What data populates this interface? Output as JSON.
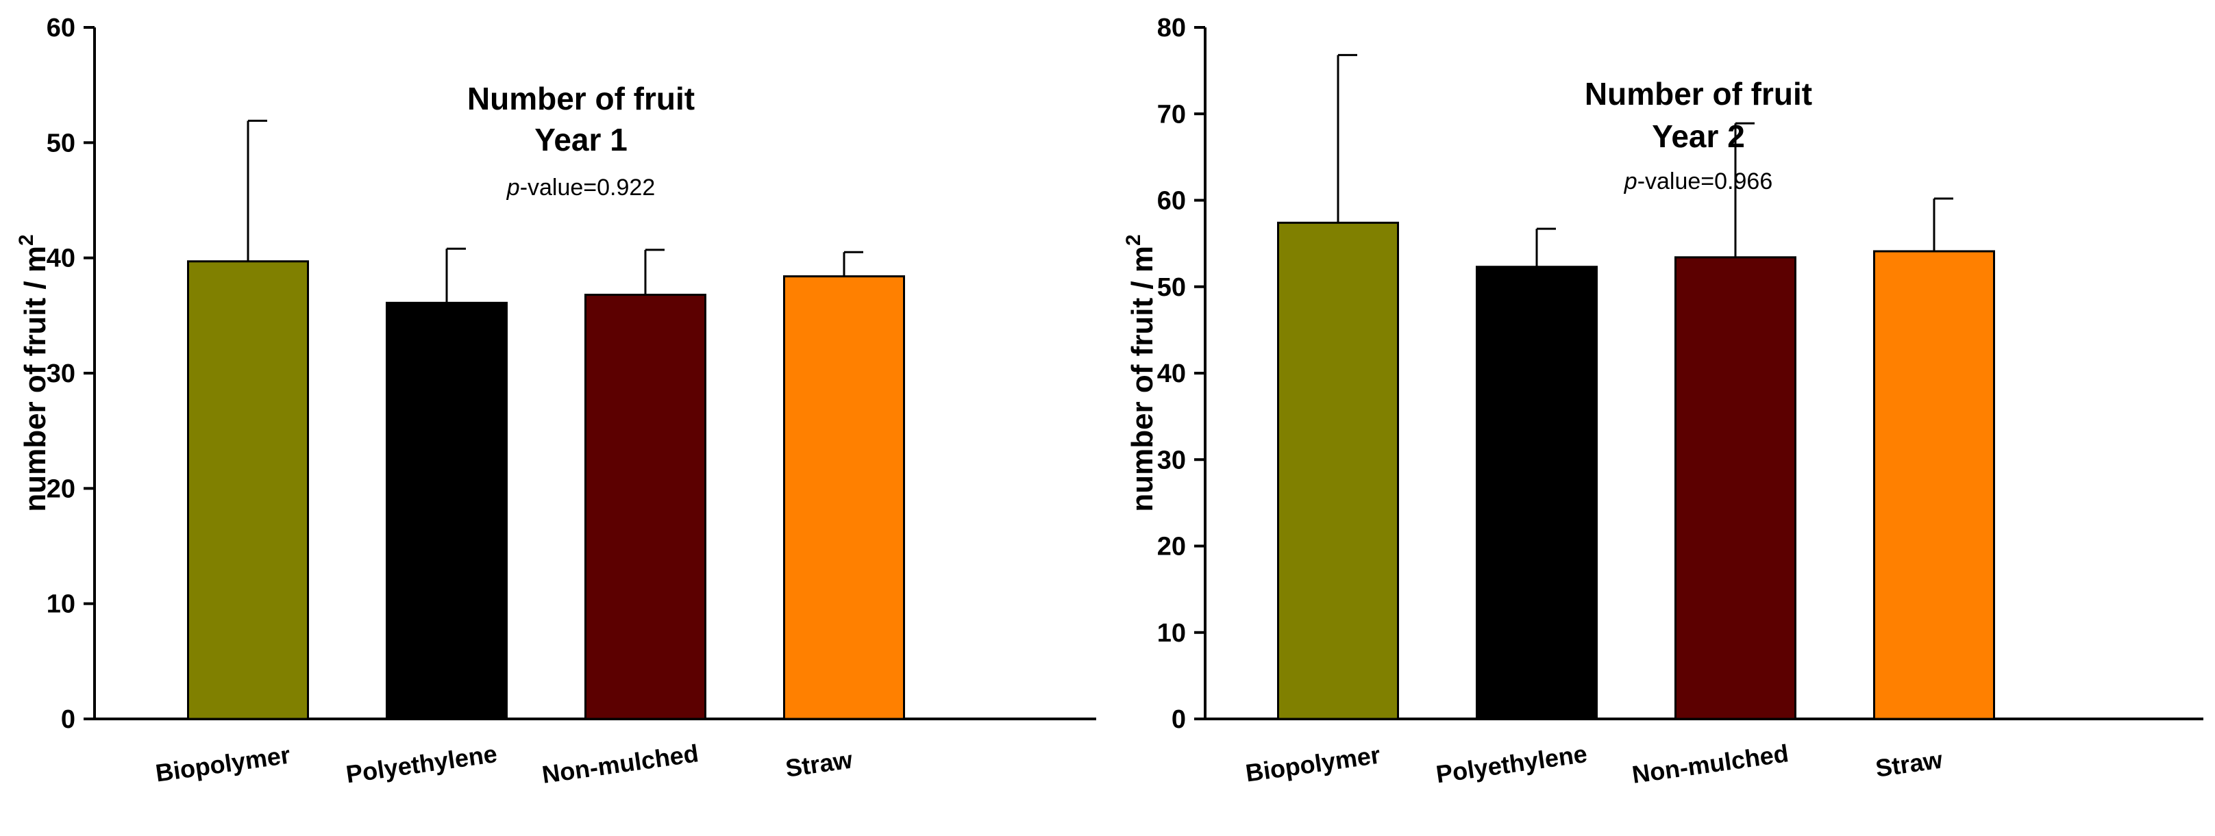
{
  "chart_data": [
    {
      "type": "bar",
      "title": "Number of fruit",
      "subtitle": "Year 1",
      "annotation": {
        "italic": "p",
        "text": "-value=0.922"
      },
      "ylabel": "number of fruit / m",
      "ylabel_superscript": "2",
      "ylim": [
        0,
        60
      ],
      "yticks": [
        0,
        10,
        20,
        30,
        40,
        50,
        60
      ],
      "categories": [
        "Biopolymer",
        "Polyethylene",
        "Non-mulched",
        "Straw"
      ],
      "values": [
        39.7,
        36.1,
        36.8,
        38.4
      ],
      "error_upper": [
        51.9,
        40.8,
        40.7,
        40.5
      ],
      "colors": [
        "#808000",
        "#000000",
        "#5c0000",
        "#ff8000"
      ]
    },
    {
      "type": "bar",
      "title": "Number of fruit",
      "subtitle": "Year 2",
      "annotation": {
        "italic": "p",
        "text": "-value=0.966"
      },
      "ylabel": "number of fruit / m",
      "ylabel_superscript": "2",
      "ylim": [
        0,
        80
      ],
      "yticks": [
        0,
        10,
        20,
        30,
        40,
        50,
        60,
        70,
        80
      ],
      "categories": [
        "Biopolymer",
        "Polyethylene",
        "Non-mulched",
        "Straw"
      ],
      "values": [
        57.4,
        52.3,
        53.4,
        54.1
      ],
      "error_upper": [
        76.8,
        56.7,
        68.9,
        60.2
      ],
      "colors": [
        "#808000",
        "#000000",
        "#5c0000",
        "#ff8000"
      ]
    }
  ]
}
